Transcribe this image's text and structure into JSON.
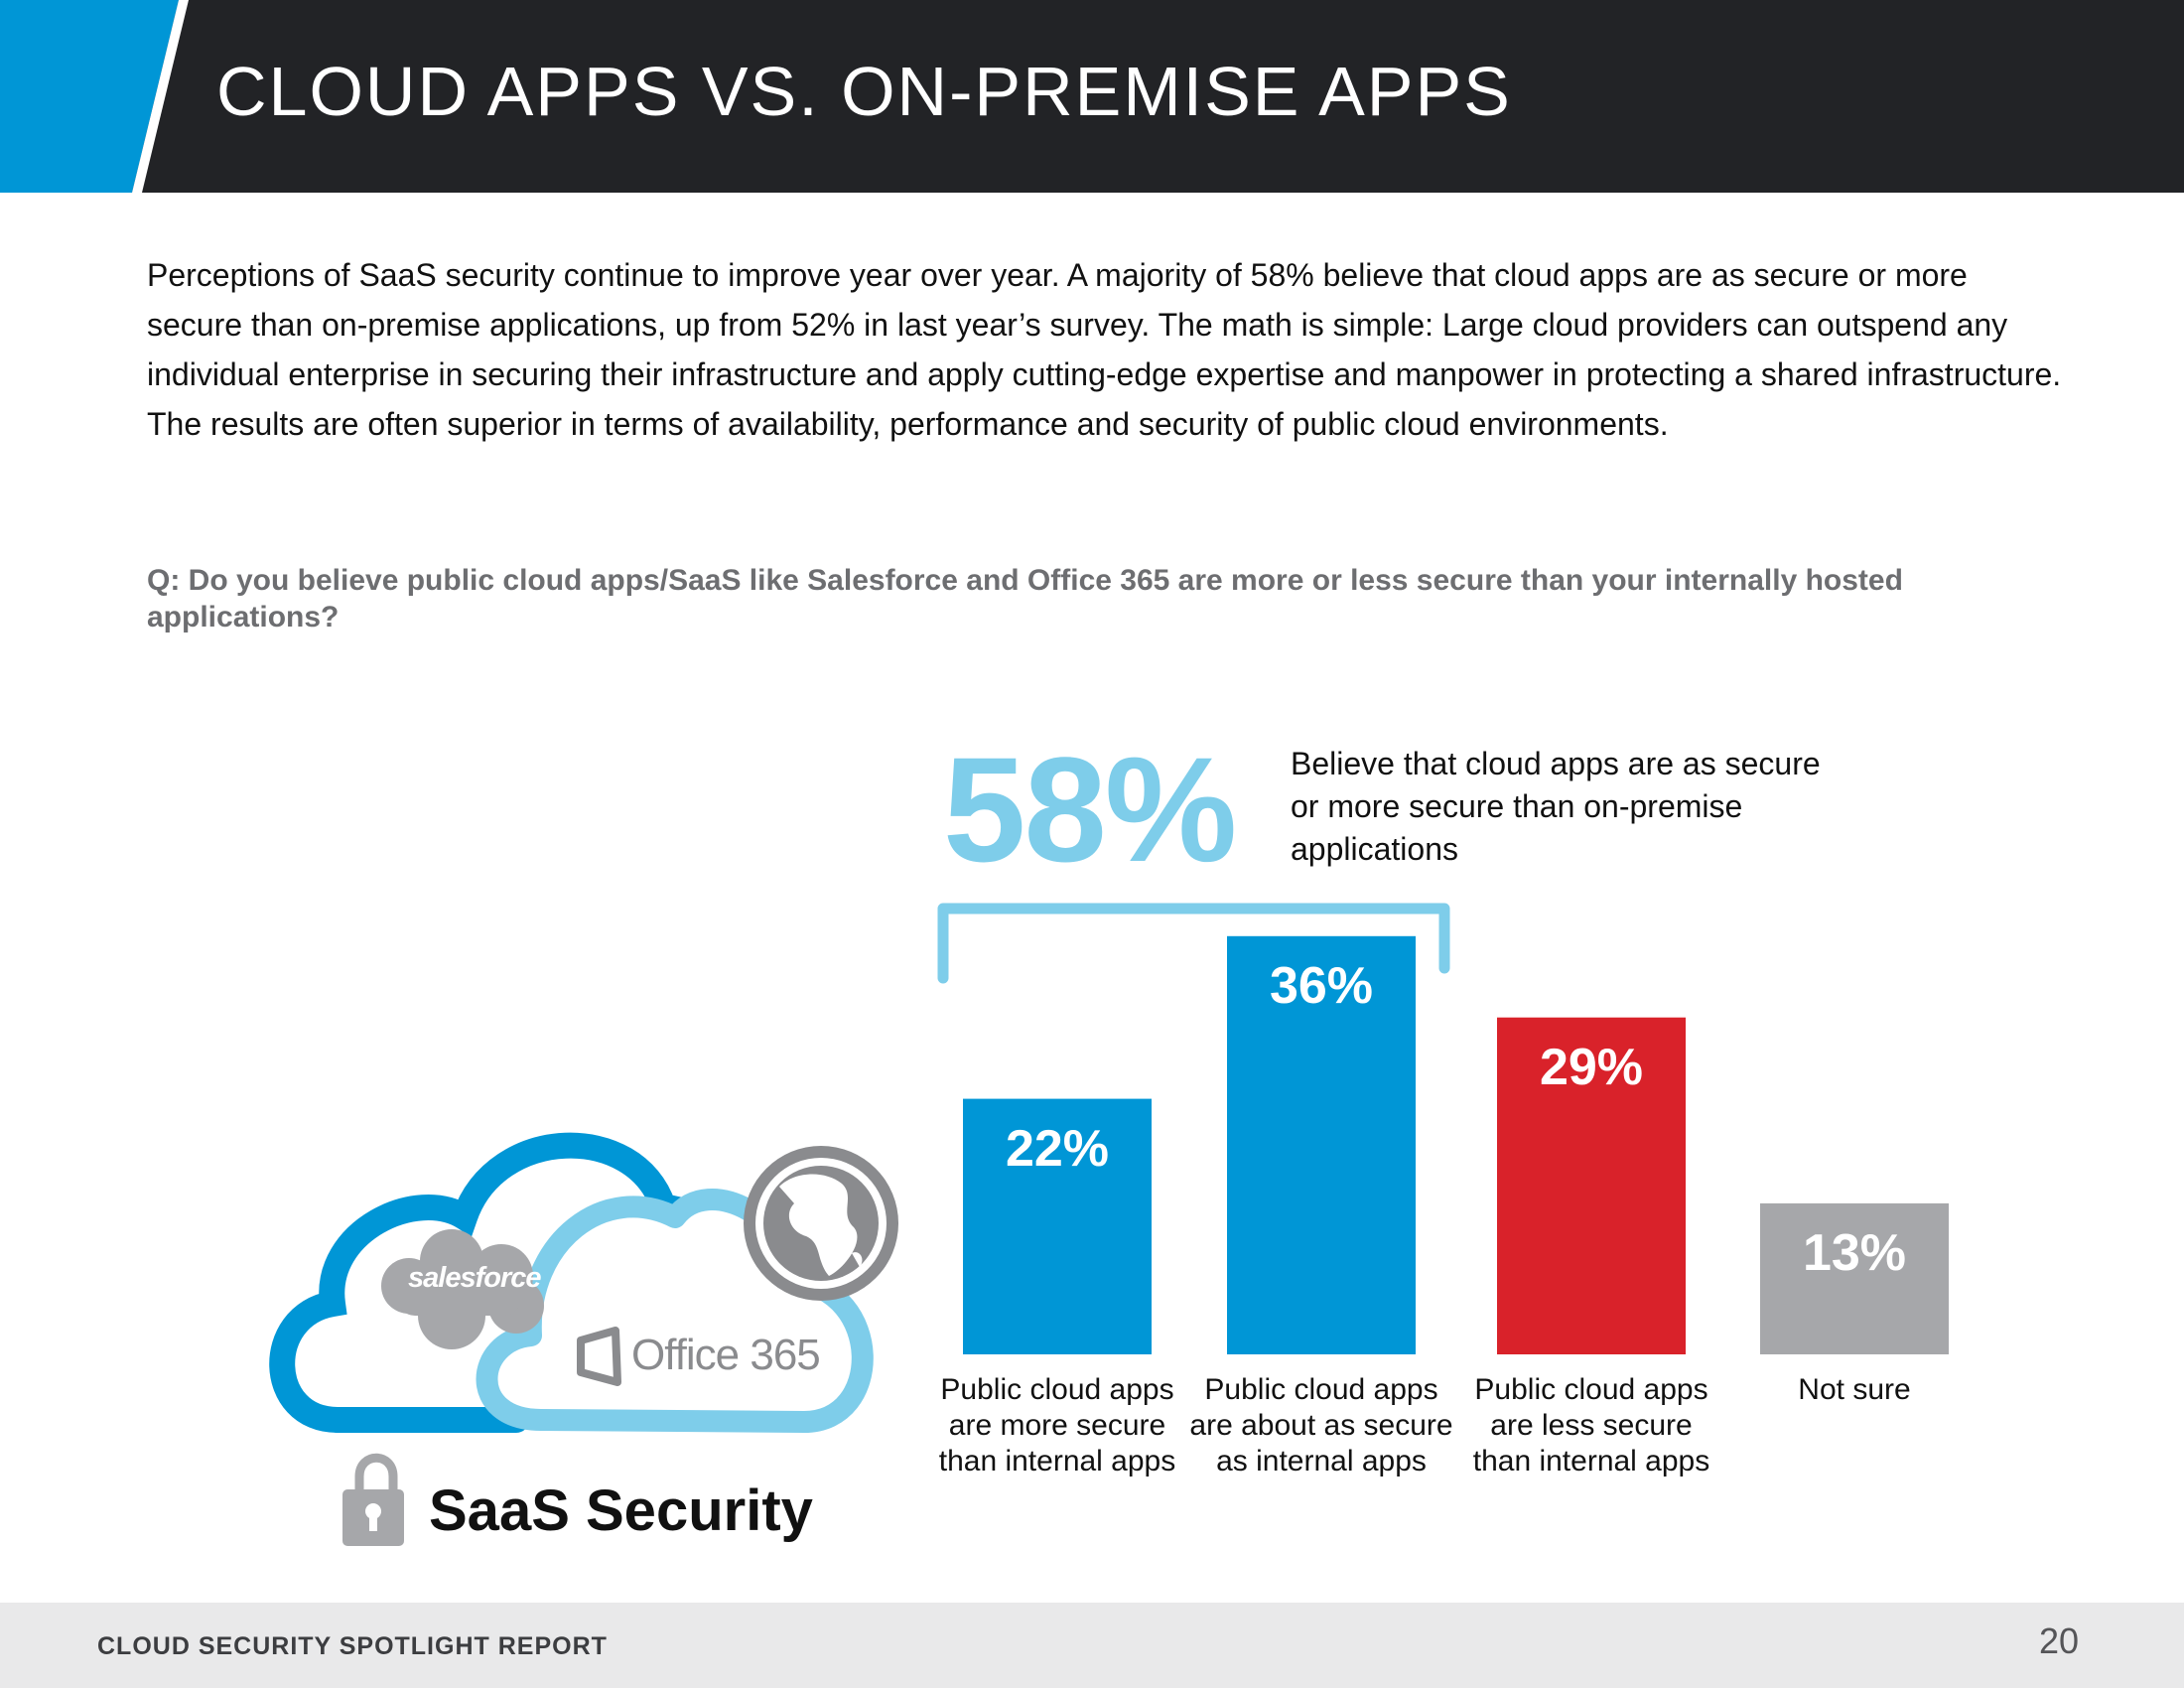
{
  "header": {
    "title": "CLOUD APPS VS. ON-PREMISE APPS",
    "band_color": "#222326",
    "accent_color": "#0096d6"
  },
  "intro": {
    "text": "Perceptions of SaaS security continue to improve year over year. A majority of 58% believe that cloud apps are as secure or more secure than on-premise applications, up from 52% in last year’s survey. The math is simple: Large cloud providers can outspend any individual enterprise in securing their infrastructure and apply cutting-edge expertise and manpower in protecting a shared infrastructure. The results are often superior in terms of availability, performance and security of public cloud environments."
  },
  "question": "Q: Do you believe public cloud apps/SaaS like Salesforce and Office 365 are more or less secure than your internally hosted applications?",
  "callout": {
    "value": "58%",
    "text": "Believe that cloud apps are as secure or more secure than on-premise applications",
    "color": "#7ecdea"
  },
  "chart_data": {
    "type": "bar",
    "categories": [
      "Public cloud apps are more secure than internal apps",
      "Public cloud apps are about as secure as internal apps",
      "Public cloud apps are less secure than internal apps",
      "Not sure"
    ],
    "values": [
      22,
      36,
      29,
      13
    ],
    "value_labels": [
      "22%",
      "36%",
      "29%",
      "13%"
    ],
    "colors": [
      "#0096d6",
      "#0096d6",
      "#d9222a",
      "#a6a7aa"
    ],
    "unit": "%",
    "grid": false,
    "bracket_groups": [
      0,
      1
    ]
  },
  "illustration": {
    "salesforce_label": "salesforce",
    "office_label": "Office 365",
    "saas_label": "SaaS Security",
    "icons": [
      "cloud-icon",
      "globe-icon",
      "lock-icon",
      "office-logo-icon"
    ]
  },
  "footer": {
    "title": "CLOUD SECURITY SPOTLIGHT REPORT",
    "page_number": "20"
  }
}
